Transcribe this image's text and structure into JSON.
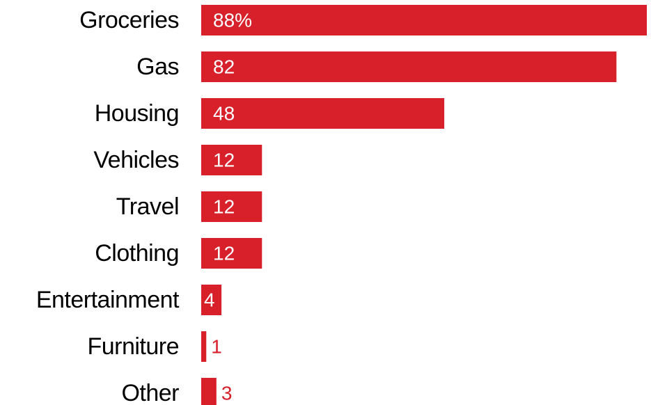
{
  "colors": {
    "bar": "#d7202a",
    "label_inside": "#ffffff",
    "label_outside": "#d7202a",
    "text": "#000000"
  },
  "chart_data": {
    "type": "bar",
    "orientation": "horizontal",
    "categories": [
      "Groceries",
      "Gas",
      "Housing",
      "Vehicles",
      "Travel",
      "Clothing",
      "Entertainment",
      "Furniture",
      "Other"
    ],
    "values": [
      88,
      82,
      48,
      12,
      12,
      12,
      4,
      1,
      3
    ],
    "value_labels": [
      "88%",
      "82",
      "48",
      "12",
      "12",
      "12",
      "4",
      "1",
      "3"
    ],
    "xlim": [
      0,
      88
    ],
    "grid": false,
    "legend": "none"
  }
}
